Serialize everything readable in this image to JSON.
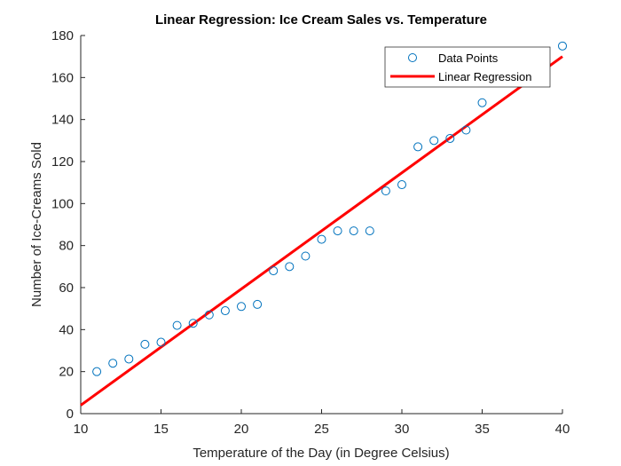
{
  "chart_data": {
    "type": "scatter",
    "title": "Linear Regression: Ice Cream Sales vs. Temperature",
    "xlabel": "Temperature of the Day (in Degree Celsius)",
    "ylabel": "Number of Ice-Creams Sold",
    "xlim": [
      10,
      40
    ],
    "ylim": [
      0,
      180
    ],
    "xticks": [
      10,
      15,
      20,
      25,
      30,
      35,
      40
    ],
    "yticks": [
      0,
      20,
      40,
      60,
      80,
      100,
      120,
      140,
      160,
      180
    ],
    "grid": false,
    "legend_position": "top-right",
    "series": [
      {
        "name": "Data Points",
        "kind": "scatter",
        "color": "#0072bd",
        "marker": "circle-open",
        "x": [
          11,
          12,
          13,
          14,
          15,
          16,
          17,
          18,
          19,
          20,
          21,
          22,
          23,
          24,
          25,
          26,
          27,
          28,
          29,
          30,
          31,
          32,
          33,
          34,
          35,
          40
        ],
        "y": [
          20,
          24,
          26,
          33,
          34,
          42,
          43,
          47,
          49,
          51,
          52,
          68,
          70,
          75,
          83,
          87,
          87,
          87,
          106,
          109,
          127,
          130,
          131,
          135,
          148,
          175
        ]
      },
      {
        "name": "Linear Regression",
        "kind": "line",
        "color": "#ff0000",
        "x": [
          10,
          40
        ],
        "y": [
          4,
          170
        ]
      }
    ]
  }
}
